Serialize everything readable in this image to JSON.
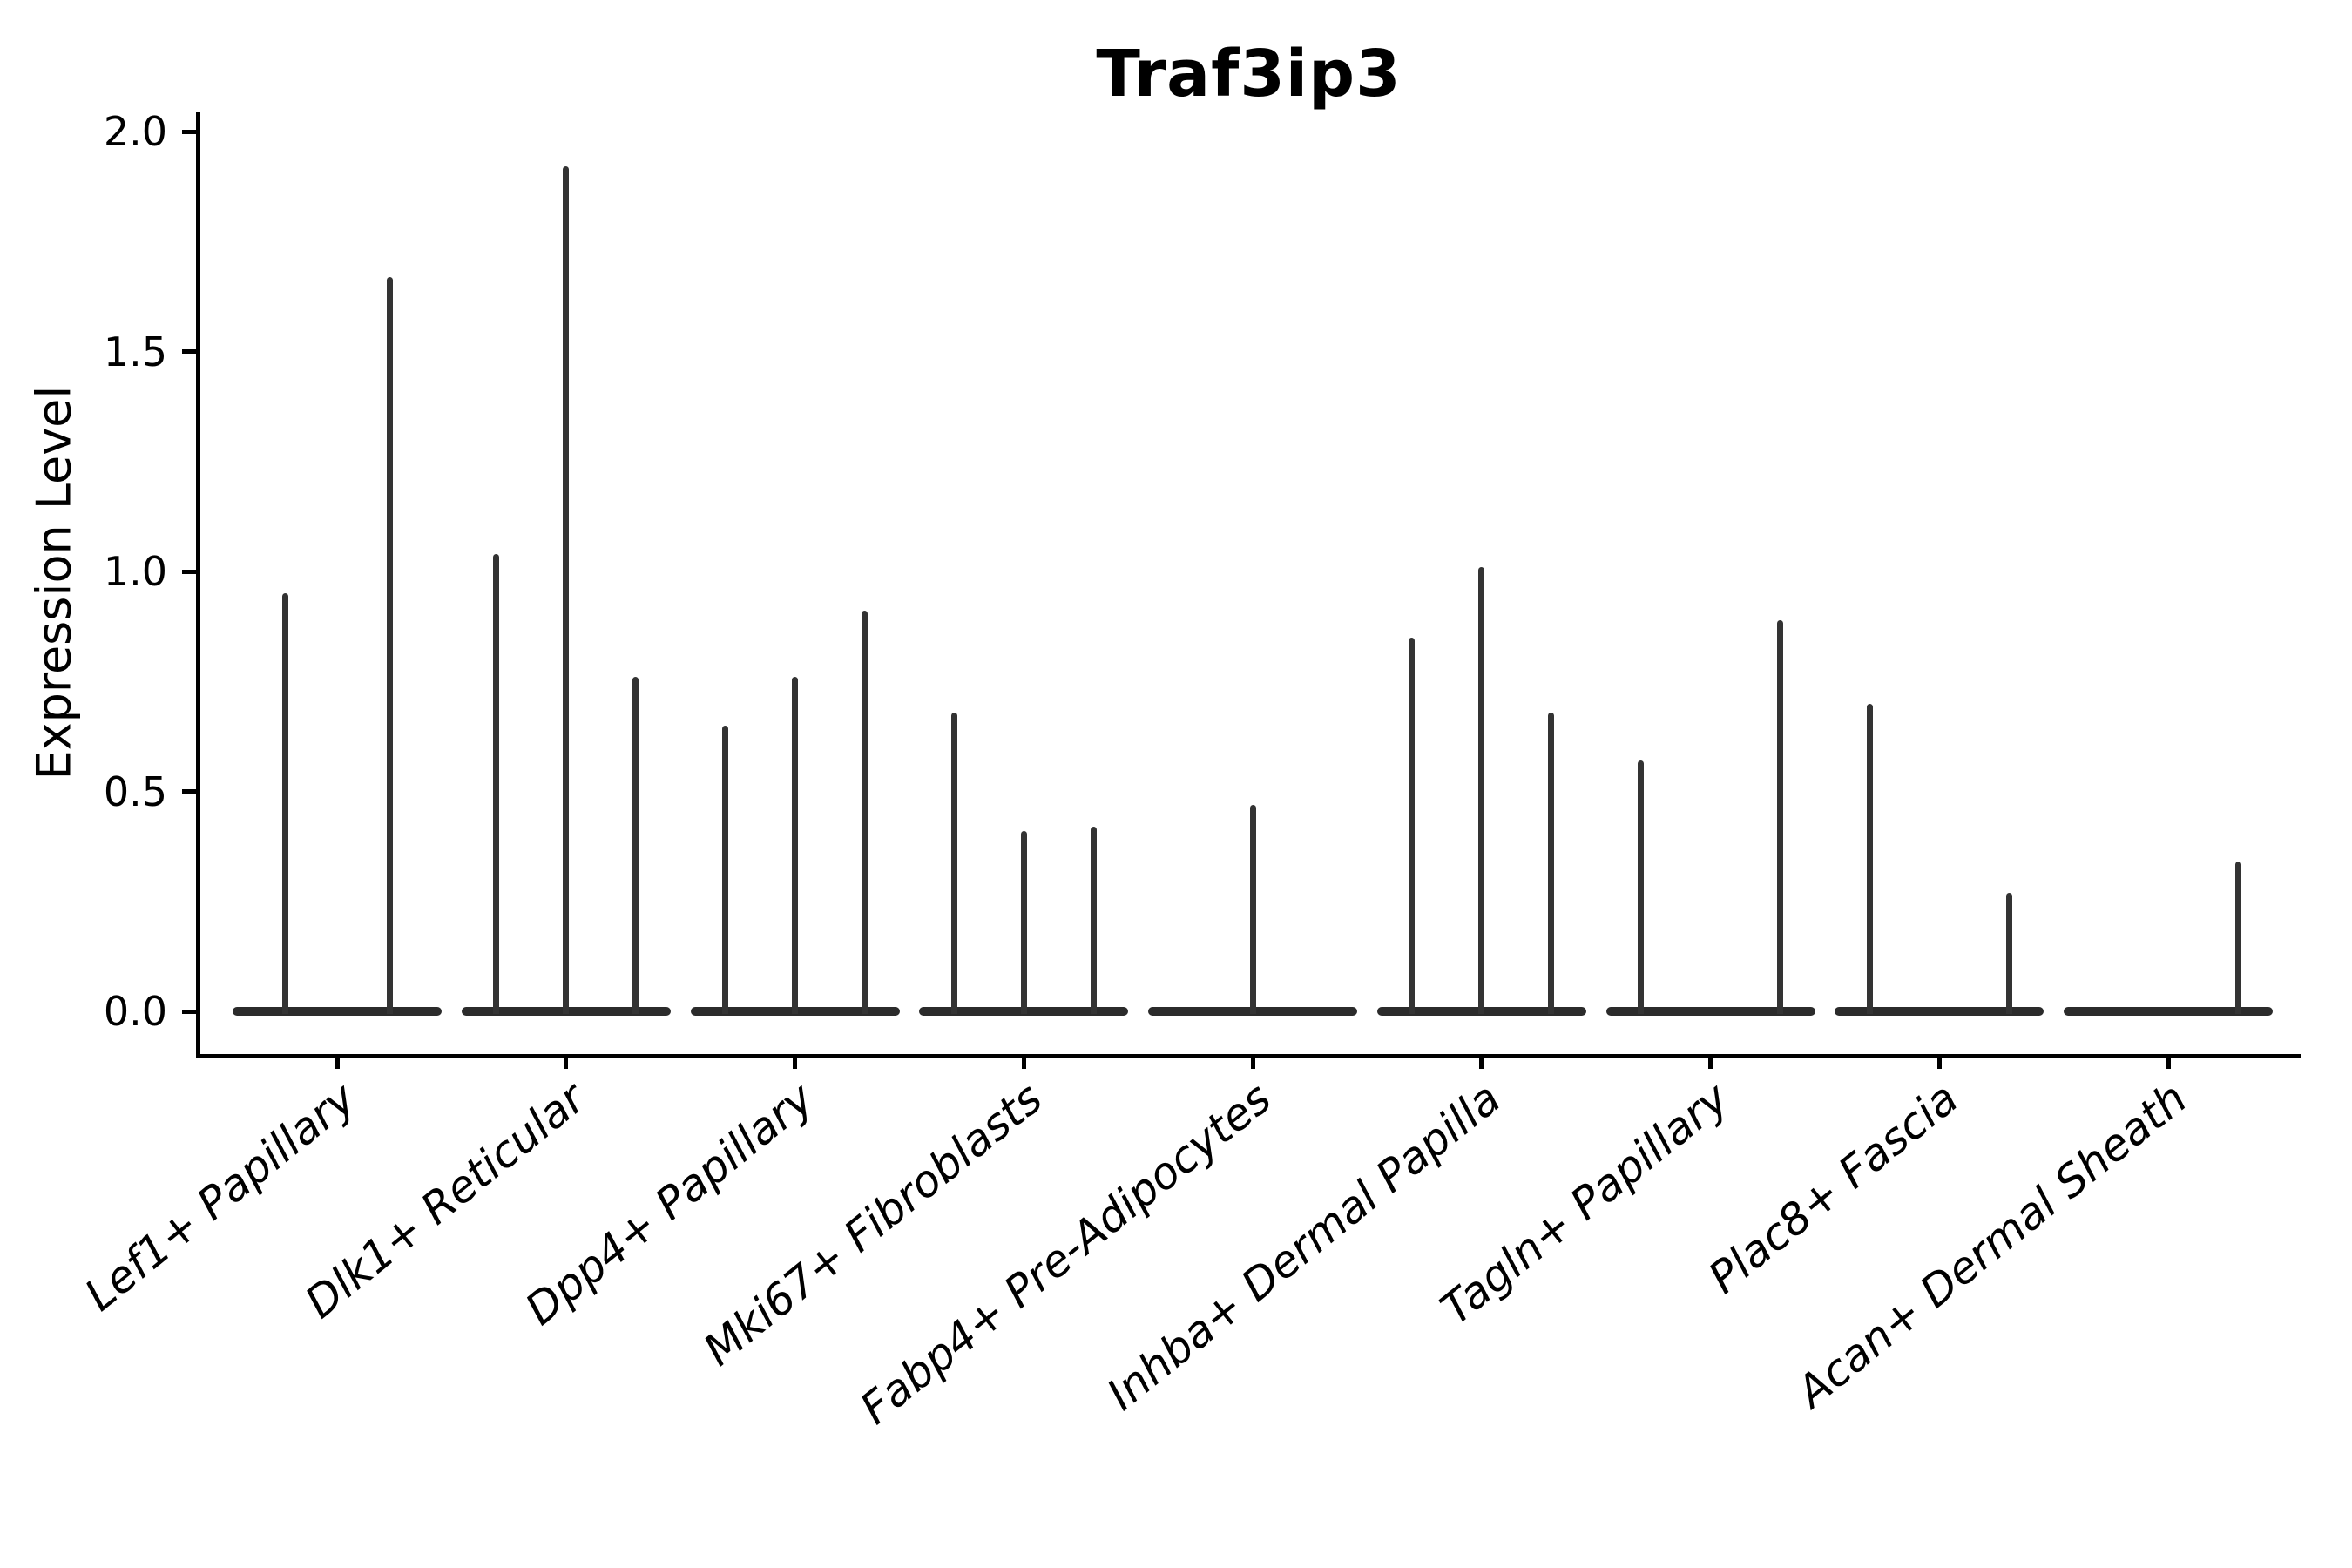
{
  "title": "Traf3ip3",
  "axes": {
    "ylabel": "Expression Level",
    "ytick_labels": [
      "0.0",
      "0.5",
      "1.0",
      "1.5",
      "2.0"
    ]
  },
  "style": {
    "axis_color": "#000000",
    "violin_line_color": "#333333",
    "violin_base_color": "#2b2b2b",
    "background": "#ffffff"
  },
  "chart_data": {
    "type": "violin",
    "title": "Traf3ip3",
    "xlabel": "",
    "ylabel": "Expression Level",
    "ylim": [
      -0.1,
      2.05
    ],
    "yticks": [
      0.0,
      0.5,
      1.0,
      1.5,
      2.0
    ],
    "grid": false,
    "legend": "none",
    "description": "Violin plot of Traf3ip3 expression per fibroblast subtype. Each group holds 2-3 violins; expression is mostly zero so each violin is a wide flat base at 0 with a thin vertical spike up to its maximum expression value (0 = completely flat violin, no spike).",
    "categories": [
      "Lef1+ Papillary",
      "Dlk1+ Reticular",
      "Dpp4+ Papillary",
      "Mki67+ Fibroblasts",
      "Fabp4+ Pre-Adipocytes",
      "Inhba+ Dermal Papilla",
      "Tagln+ Papillary",
      "Plac8+ Fascia",
      "Acan+ Dermal Sheath"
    ],
    "groups": [
      {
        "label": "Lef1+ Papillary",
        "violin_maxima": [
          0.95,
          1.67
        ]
      },
      {
        "label": "Dlk1+ Reticular",
        "violin_maxima": [
          1.04,
          1.92,
          0.76
        ]
      },
      {
        "label": "Dpp4+ Papillary",
        "violin_maxima": [
          0.65,
          0.76,
          0.91
        ]
      },
      {
        "label": "Mki67+ Fibroblasts",
        "violin_maxima": [
          0.68,
          0.41,
          0.42
        ]
      },
      {
        "label": "Fabp4+ Pre-Adipocytes",
        "violin_maxima": [
          0.0,
          0.47,
          0.0
        ]
      },
      {
        "label": "Inhba+ Dermal Papilla",
        "violin_maxima": [
          0.85,
          1.01,
          0.68
        ]
      },
      {
        "label": "Tagln+ Papillary",
        "violin_maxima": [
          0.57,
          0.0,
          0.89
        ]
      },
      {
        "label": "Plac8+ Fascia",
        "violin_maxima": [
          0.7,
          0.0,
          0.27
        ]
      },
      {
        "label": "Acan+ Dermal Sheath",
        "violin_maxima": [
          0.0,
          0.0,
          0.34
        ]
      }
    ]
  }
}
